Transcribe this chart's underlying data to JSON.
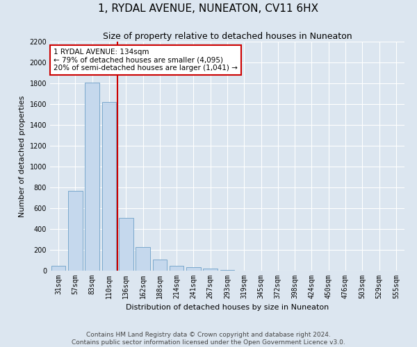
{
  "title": "1, RYDAL AVENUE, NUNEATON, CV11 6HX",
  "subtitle": "Size of property relative to detached houses in Nuneaton",
  "xlabel": "Distribution of detached houses by size in Nuneaton",
  "ylabel": "Number of detached properties",
  "categories": [
    "31sqm",
    "57sqm",
    "83sqm",
    "110sqm",
    "136sqm",
    "162sqm",
    "188sqm",
    "214sqm",
    "241sqm",
    "267sqm",
    "293sqm",
    "319sqm",
    "345sqm",
    "372sqm",
    "398sqm",
    "424sqm",
    "450sqm",
    "476sqm",
    "503sqm",
    "529sqm",
    "555sqm"
  ],
  "values": [
    50,
    770,
    1810,
    1620,
    510,
    230,
    105,
    50,
    35,
    20,
    8,
    3,
    1,
    0,
    0,
    0,
    0,
    0,
    0,
    0,
    0
  ],
  "bar_color": "#c5d8ed",
  "bar_edge_color": "#7aa8cc",
  "vline_x": 3.5,
  "vline_label": "1 RYDAL AVENUE: 134sqm",
  "annotation_line1": "← 79% of detached houses are smaller (4,095)",
  "annotation_line2": "20% of semi-detached houses are larger (1,041) →",
  "annotation_box_color": "#ffffff",
  "annotation_box_edge": "#cc0000",
  "vline_color": "#cc0000",
  "ylim": [
    0,
    2200
  ],
  "yticks": [
    0,
    200,
    400,
    600,
    800,
    1000,
    1200,
    1400,
    1600,
    1800,
    2000,
    2200
  ],
  "footer_line1": "Contains HM Land Registry data © Crown copyright and database right 2024.",
  "footer_line2": "Contains public sector information licensed under the Open Government Licence v3.0.",
  "bg_color": "#dce6f0",
  "plot_bg_color": "#dce6f0",
  "title_fontsize": 11,
  "subtitle_fontsize": 9,
  "axis_label_fontsize": 8,
  "tick_fontsize": 7,
  "footer_fontsize": 6.5,
  "annotation_fontsize": 7.5
}
